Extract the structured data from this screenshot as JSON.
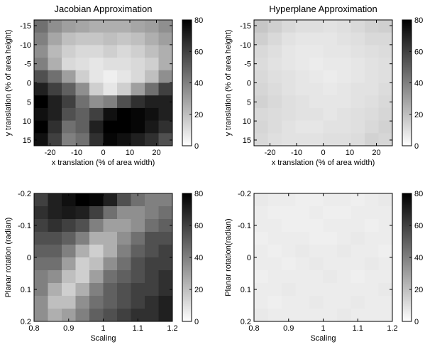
{
  "chart_data": [
    {
      "type": "heatmap",
      "title": "Jacobian Approximation",
      "xlabel": "x translation (% of area width)",
      "ylabel": "y translation (% of area height)",
      "xlim": [
        -26,
        26
      ],
      "ylim": [
        -16.5,
        16.5
      ],
      "y_reversed": true,
      "xticks": [
        -20,
        -10,
        0,
        10,
        20
      ],
      "yticks": [
        -15,
        -10,
        -5,
        0,
        5,
        10,
        15
      ],
      "clim": [
        0,
        80
      ],
      "cticks": [
        0,
        20,
        40,
        60,
        80
      ],
      "values": [
        [
          45,
          35,
          30,
          28,
          25,
          25,
          25,
          28,
          30,
          35
        ],
        [
          40,
          28,
          20,
          18,
          18,
          20,
          18,
          20,
          25,
          30
        ],
        [
          35,
          22,
          15,
          12,
          12,
          15,
          12,
          15,
          20,
          25
        ],
        [
          40,
          25,
          12,
          10,
          8,
          10,
          10,
          12,
          15,
          25
        ],
        [
          55,
          45,
          30,
          15,
          8,
          5,
          8,
          12,
          20,
          35
        ],
        [
          70,
          60,
          50,
          35,
          15,
          8,
          15,
          30,
          45,
          60
        ],
        [
          80,
          70,
          60,
          45,
          35,
          40,
          55,
          65,
          70,
          70
        ],
        [
          75,
          70,
          55,
          50,
          60,
          75,
          80,
          78,
          75,
          70
        ],
        [
          80,
          65,
          45,
          50,
          70,
          80,
          80,
          78,
          72,
          65
        ],
        [
          75,
          60,
          40,
          45,
          65,
          78,
          75,
          70,
          65,
          55
        ]
      ]
    },
    {
      "type": "heatmap",
      "title": "Hyperplane Approximation",
      "xlabel": "x translation (% of area width)",
      "ylabel": "y translation (% of area height)",
      "xlim": [
        -26,
        26
      ],
      "ylim": [
        -16.5,
        16.5
      ],
      "y_reversed": true,
      "xticks": [
        -20,
        -10,
        0,
        10,
        20
      ],
      "yticks": [
        -15,
        -10,
        -5,
        0,
        5,
        10,
        15
      ],
      "clim": [
        0,
        80
      ],
      "cticks": [
        0,
        20,
        40,
        60,
        80
      ],
      "values": [
        [
          18,
          15,
          12,
          10,
          10,
          9,
          10,
          12,
          14,
          15
        ],
        [
          15,
          12,
          9,
          8,
          8,
          8,
          9,
          10,
          12,
          12
        ],
        [
          12,
          10,
          8,
          7,
          7,
          8,
          8,
          9,
          10,
          11
        ],
        [
          11,
          9,
          8,
          7,
          6,
          7,
          7,
          8,
          9,
          10
        ],
        [
          12,
          10,
          9,
          8,
          7,
          6,
          7,
          8,
          9,
          10
        ],
        [
          13,
          11,
          9,
          8,
          8,
          7,
          8,
          9,
          9,
          11
        ],
        [
          14,
          12,
          10,
          9,
          8,
          8,
          8,
          9,
          10,
          12
        ],
        [
          12,
          11,
          10,
          9,
          9,
          8,
          9,
          10,
          11,
          13
        ],
        [
          13,
          11,
          9,
          8,
          8,
          9,
          9,
          10,
          12,
          14
        ],
        [
          12,
          10,
          9,
          9,
          9,
          10,
          10,
          11,
          14,
          13
        ]
      ]
    },
    {
      "type": "heatmap",
      "xlabel": "Scaling",
      "ylabel": "Planar rotation (radian)",
      "xlim": [
        0.8,
        1.2
      ],
      "ylim": [
        -0.2,
        0.2
      ],
      "y_reversed": true,
      "xticks": [
        0.8,
        0.9,
        1,
        1.1,
        1.2
      ],
      "yticks": [
        -0.2,
        -0.1,
        0,
        0.1,
        0.2
      ],
      "clim": [
        0,
        80
      ],
      "cticks": [
        0,
        20,
        40,
        60,
        80
      ],
      "values": [
        [
          60,
          70,
          75,
          80,
          78,
          70,
          55,
          45,
          40,
          40
        ],
        [
          65,
          70,
          72,
          70,
          60,
          45,
          35,
          35,
          40,
          45
        ],
        [
          60,
          65,
          60,
          55,
          40,
          30,
          30,
          35,
          45,
          50
        ],
        [
          55,
          55,
          50,
          40,
          25,
          25,
          35,
          45,
          55,
          55
        ],
        [
          50,
          50,
          40,
          25,
          15,
          25,
          40,
          50,
          55,
          60
        ],
        [
          45,
          45,
          30,
          15,
          20,
          35,
          45,
          55,
          60,
          60
        ],
        [
          40,
          35,
          20,
          15,
          30,
          45,
          50,
          55,
          60,
          65
        ],
        [
          40,
          25,
          15,
          25,
          40,
          50,
          55,
          60,
          60,
          65
        ],
        [
          35,
          20,
          20,
          35,
          45,
          50,
          55,
          60,
          65,
          70
        ],
        [
          35,
          25,
          30,
          40,
          50,
          55,
          60,
          65,
          65,
          70
        ]
      ]
    },
    {
      "type": "heatmap",
      "xlabel": "Scaling",
      "ylabel": "Planar rotation(radian)",
      "xlim": [
        0.8,
        1.2
      ],
      "ylim": [
        -0.2,
        0.2
      ],
      "y_reversed": true,
      "xticks": [
        0.8,
        0.9,
        1,
        1.1,
        1.2
      ],
      "yticks": [
        -0.2,
        -0.1,
        0,
        0.1,
        0.2
      ],
      "clim": [
        0,
        80
      ],
      "cticks": [
        0,
        20,
        40,
        60,
        80
      ],
      "values": [
        [
          7,
          6,
          6,
          5,
          5,
          6,
          6,
          5,
          6,
          7
        ],
        [
          6,
          5,
          5,
          5,
          6,
          5,
          5,
          6,
          6,
          6
        ],
        [
          6,
          6,
          5,
          5,
          5,
          6,
          6,
          6,
          5,
          6
        ],
        [
          5,
          6,
          6,
          6,
          5,
          5,
          6,
          7,
          6,
          6
        ],
        [
          6,
          5,
          6,
          7,
          6,
          6,
          7,
          6,
          6,
          5
        ],
        [
          6,
          6,
          5,
          6,
          7,
          6,
          6,
          6,
          7,
          6
        ],
        [
          5,
          6,
          6,
          6,
          6,
          7,
          6,
          5,
          6,
          6
        ],
        [
          6,
          6,
          7,
          6,
          6,
          6,
          6,
          6,
          6,
          7
        ],
        [
          6,
          5,
          6,
          6,
          7,
          6,
          6,
          7,
          6,
          6
        ],
        [
          7,
          6,
          6,
          6,
          6,
          6,
          7,
          6,
          6,
          6
        ]
      ]
    }
  ]
}
